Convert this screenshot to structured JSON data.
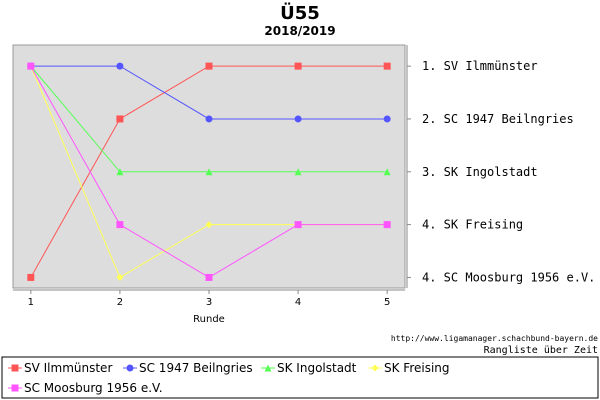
{
  "chart_data": {
    "type": "line",
    "title": "Ü55",
    "subtitle": "2018/2019",
    "xlabel": "Runde",
    "x": [
      1,
      2,
      3,
      4,
      5
    ],
    "xlim": [
      0.8,
      5.2
    ],
    "ylim": [
      0.6,
      5.2
    ],
    "y_inverted": true,
    "grid": false,
    "background": "#dddddd",
    "series": [
      {
        "name": "SV Ilmmünster",
        "color": "#ff5555",
        "marker": "square",
        "values": [
          5,
          2,
          1,
          1,
          1
        ]
      },
      {
        "name": "SC 1947 Beilngries",
        "color": "#5555ff",
        "marker": "circle",
        "values": [
          1,
          1,
          2,
          2,
          2
        ]
      },
      {
        "name": "SK Ingolstadt",
        "color": "#55ff55",
        "marker": "triangle",
        "values": [
          1,
          3,
          3,
          3,
          3
        ]
      },
      {
        "name": "SK Freising",
        "color": "#ffff55",
        "marker": "diamond",
        "values": [
          1,
          5,
          4,
          4,
          4
        ]
      },
      {
        "name": "SC Moosburg 1956 e.V.",
        "color": "#ff55ff",
        "marker": "square",
        "values": [
          1,
          4,
          5,
          4,
          4
        ]
      }
    ],
    "rank_labels": [
      {
        "rank": 1,
        "text": "1. SV Ilmmünster"
      },
      {
        "rank": 2,
        "text": "2. SC 1947 Beilngries"
      },
      {
        "rank": 3,
        "text": "3. SK Ingolstadt"
      },
      {
        "rank": 4,
        "text": "4. SK Freising"
      },
      {
        "rank": 5,
        "text": "4. SC Moosburg 1956 e.V."
      }
    ],
    "source_url": "http://www.ligamanager.schachbund-bayern.de",
    "source_caption": "Rangliste über Zeit",
    "legend_position": "bottom"
  }
}
